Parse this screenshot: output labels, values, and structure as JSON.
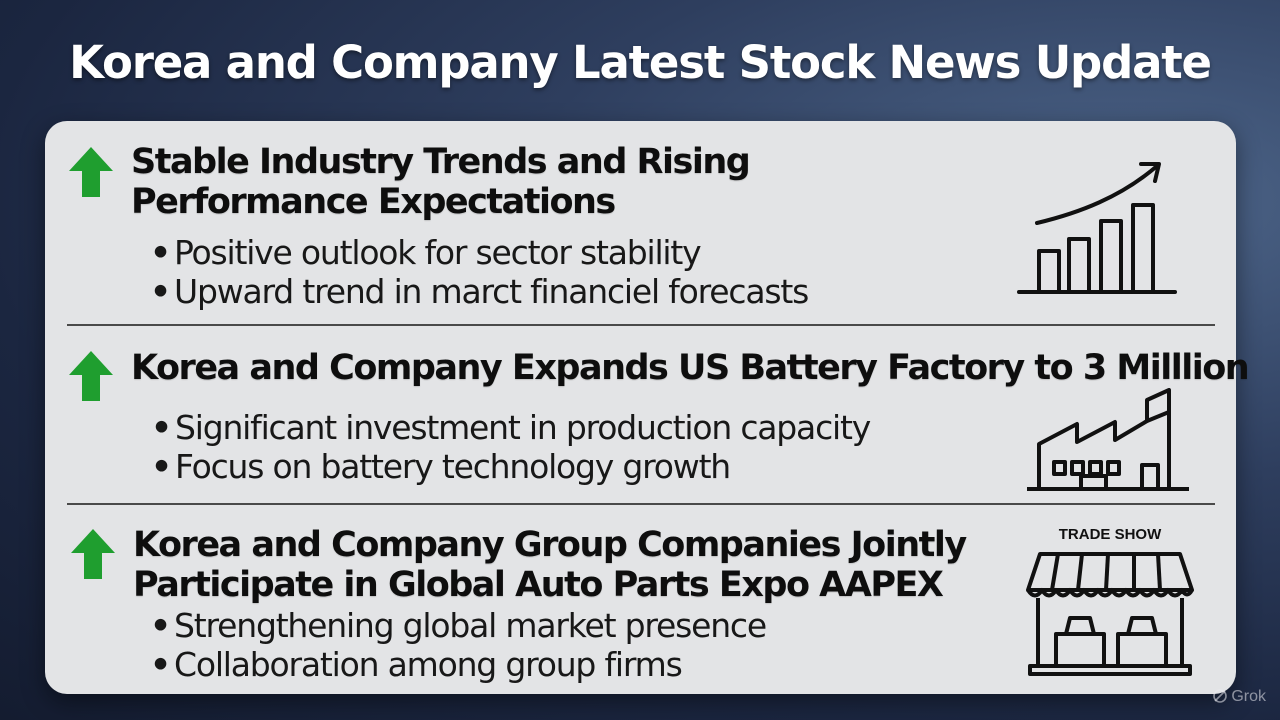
{
  "page": {
    "title": "Korea and Company Latest Stock News Update"
  },
  "news": [
    {
      "title_lines": [
        "Stable Industry Trends and Rising",
        "Performance Expectations"
      ],
      "bullets": [
        "Positive outlook for sector stability",
        "Upward trend in marct financiel forecasts"
      ],
      "trend": "up",
      "icon": "bar-chart-growth-icon"
    },
    {
      "title_lines": [
        "Korea and Company Expands US Battery Factory to 3 Milllion"
      ],
      "bullets": [
        "Significant investment in production capacity",
        "Focus on battery technology growth"
      ],
      "trend": "up",
      "icon": "factory-icon"
    },
    {
      "title_lines": [
        "Korea and Company Group Companies Jointly",
        "Participate in Global Auto Parts Expo AAPEX"
      ],
      "bullets": [
        "Strengthening global market presence",
        "Collaboration among group firms"
      ],
      "trend": "up",
      "icon": "trade-show-booth-icon",
      "icon_label": "TRADE SHOW"
    }
  ],
  "watermark": {
    "text": "Grok"
  },
  "colors": {
    "up_arrow": "#1f9e2f",
    "panel": "#e3e4e6",
    "title_text": "#ffffff"
  }
}
